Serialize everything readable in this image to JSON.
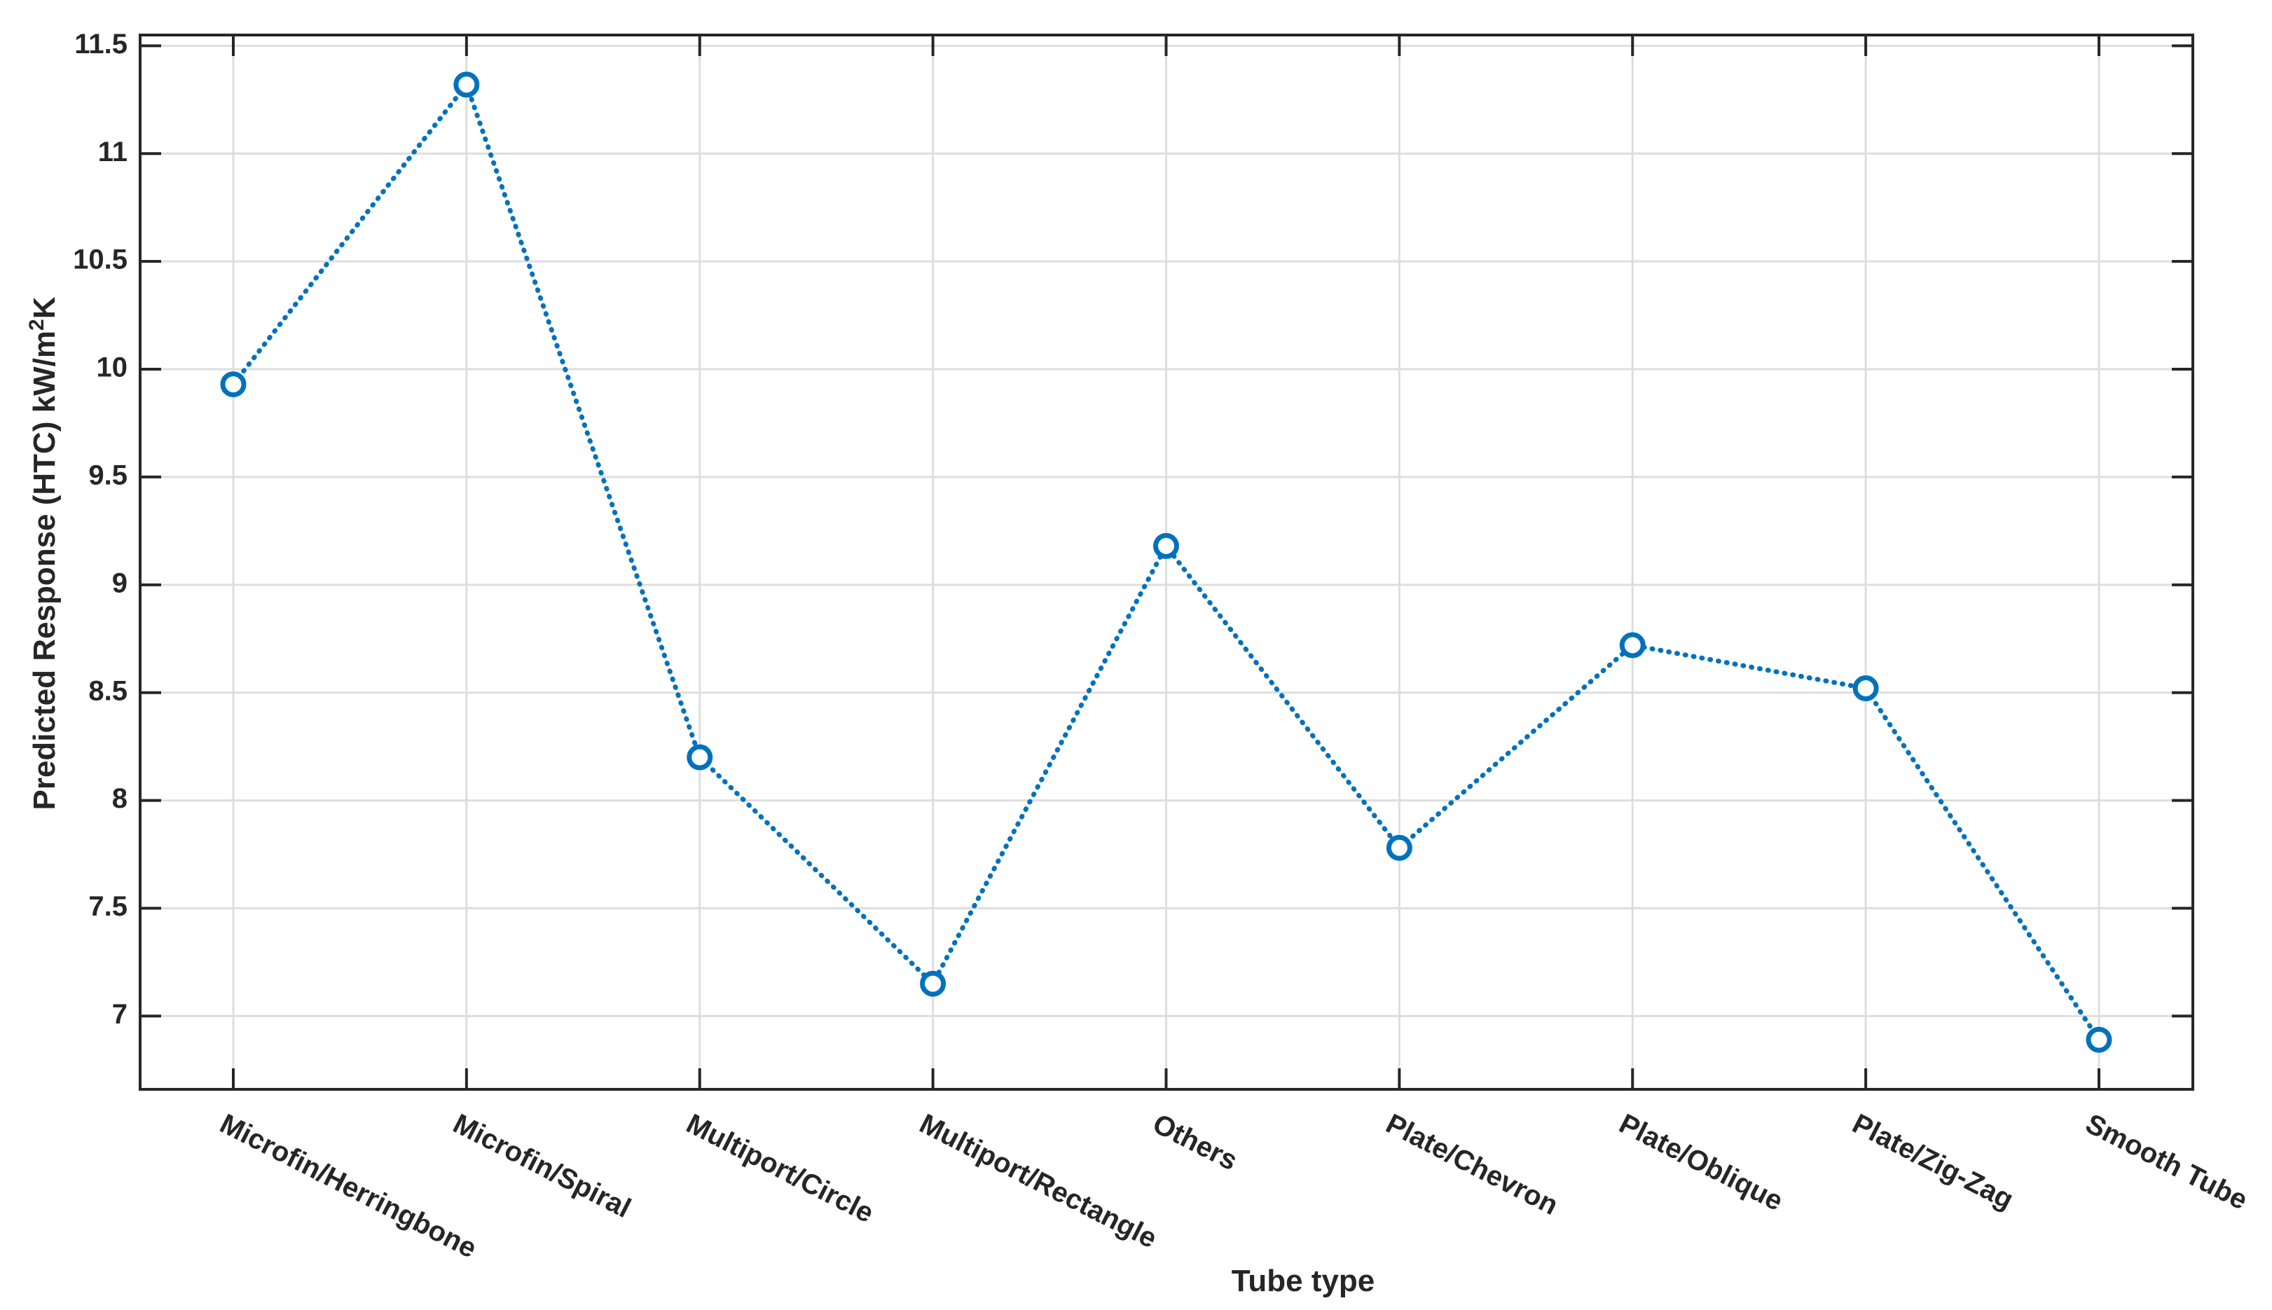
{
  "chart_data": {
    "type": "line",
    "title": "",
    "xlabel": "Tube type",
    "ylabel": {
      "prefix": "Predicted Response (HTC) kW/m",
      "superscript": "2",
      "suffix": "K"
    },
    "categories": [
      "Microfin/Herringbone",
      "Microfin/Spiral",
      "Multiport/Circle",
      "Multiport/Rectangle",
      "Others",
      "Plate/Chevron",
      "Plate/Oblique",
      "Plate/Zig-Zag",
      "Smooth Tube"
    ],
    "series": [
      {
        "values": [
          9.93,
          11.32,
          8.2,
          7.15,
          9.18,
          7.78,
          8.72,
          8.52,
          6.89
        ],
        "color": "#0072bd",
        "line_style": "dotted",
        "marker": "circle"
      }
    ],
    "ylim": [
      6.66,
      11.55
    ],
    "yticks": [
      7,
      7.5,
      8,
      8.5,
      9,
      9.5,
      10,
      10.5,
      11,
      11.5
    ],
    "ytick_labels": [
      "7",
      "7.5",
      "8",
      "8.5",
      "9",
      "9.5",
      "10",
      "10.5",
      "11",
      "11.5"
    ],
    "grid": true,
    "legend": "none"
  }
}
